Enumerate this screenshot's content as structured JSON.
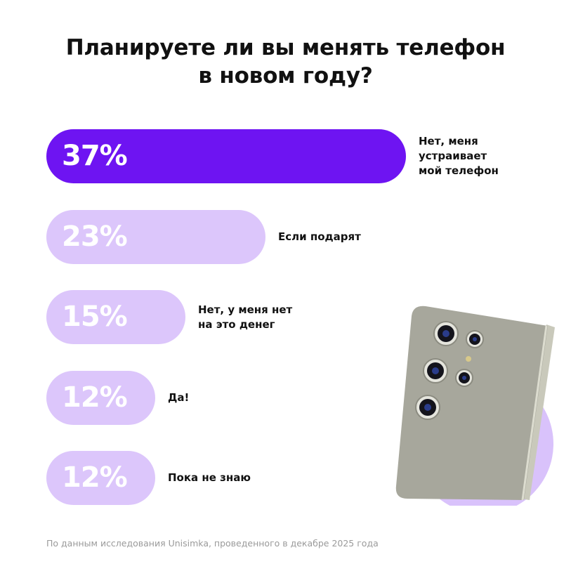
{
  "title": {
    "line1": "Планируете ли вы менять телефон",
    "line2": "в новом году?"
  },
  "chart_data": {
    "type": "bar",
    "orientation": "horizontal",
    "categories": [
      "Нет, меня устраивает мой телефон",
      "Если подарят",
      "Нет, у меня нет на это денег",
      "Да!",
      "Пока не знаю"
    ],
    "values": [
      37,
      23,
      15,
      12,
      12
    ],
    "value_labels": [
      "37%",
      "23%",
      "15%",
      "12%",
      "12%"
    ],
    "unit": "%",
    "label_lines": [
      [
        "Нет, меня",
        "устраивает",
        "мой телефон"
      ],
      [
        "Если подарят"
      ],
      [
        "Нет, у меня нет",
        "на это денег"
      ],
      [
        "Да!"
      ],
      [
        "Пока не знаю"
      ]
    ],
    "colors": {
      "highlight": "#6e14f2",
      "default": "#dcc6fb",
      "value_text": "#ffffff"
    },
    "grid": false,
    "legend": "none"
  },
  "footnote": "По данным исследования Unisimka, проведенного в декабре 2025 года"
}
